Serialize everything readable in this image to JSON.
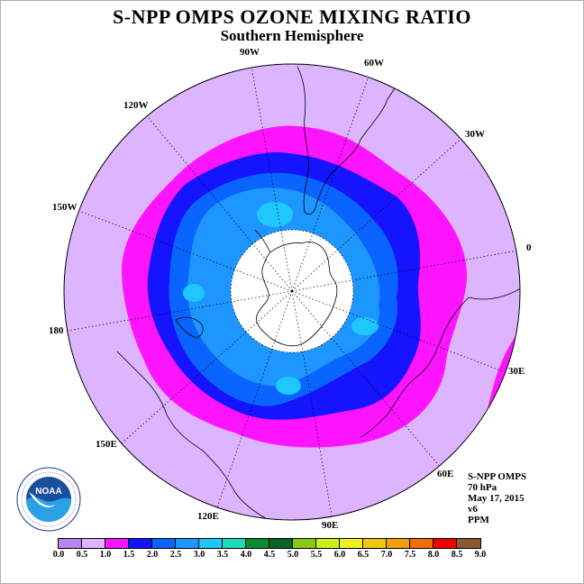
{
  "title": "S-NPP OMPS OZONE MIXING RATIO",
  "subtitle": "Southern Hemisphere",
  "longitude_labels": [
    "90W",
    "60W",
    "30W",
    "0",
    "30E",
    "60E",
    "90E",
    "120E",
    "150E",
    "180",
    "150W",
    "120W"
  ],
  "info": {
    "instrument": "S-NPP OMPS",
    "level": "70 hPa",
    "date": "May 17, 2015",
    "version": "v6",
    "units": "PPM"
  },
  "colorbar": {
    "ticks": [
      "0.0",
      "0.5",
      "1.0",
      "1.5",
      "2.0",
      "2.5",
      "3.0",
      "3.5",
      "4.0",
      "4.5",
      "5.0",
      "5.5",
      "6.0",
      "6.5",
      "7.0",
      "7.5",
      "8.0",
      "8.5",
      "9.0"
    ],
    "colors": [
      "#b784f0",
      "#dcb4ff",
      "#ff14ff",
      "#1414ff",
      "#0a64ff",
      "#1e96ff",
      "#1ec8ff",
      "#1edcb4",
      "#0a8c32",
      "#0a6428",
      "#8cc814",
      "#c8f01e",
      "#f0f01e",
      "#f0c814",
      "#f0a00a",
      "#f06e0a",
      "#f00000",
      "#8c5a32"
    ]
  },
  "map": {
    "projection": "south polar stereographic",
    "no_data_region": "polar night (white)",
    "colors": {
      "background_range": "#dcb4ff",
      "ring_1_0_to_1_5": "#ff14ff",
      "ring_1_5_to_2_0": "#1414ff",
      "core_2_0_to_2_5": "#0a64ff",
      "core_2_5_to_3_0": "#1e96ff",
      "core_3_0_to_3_5": "#1ec8ff"
    }
  },
  "logo": {
    "name": "noaa-logo",
    "text": "NOAA",
    "ring_text": "NATIONAL OCEANIC AND ATMOSPHERIC ADMINISTRATION · U.S. DEPARTMENT OF COMMERCE"
  }
}
